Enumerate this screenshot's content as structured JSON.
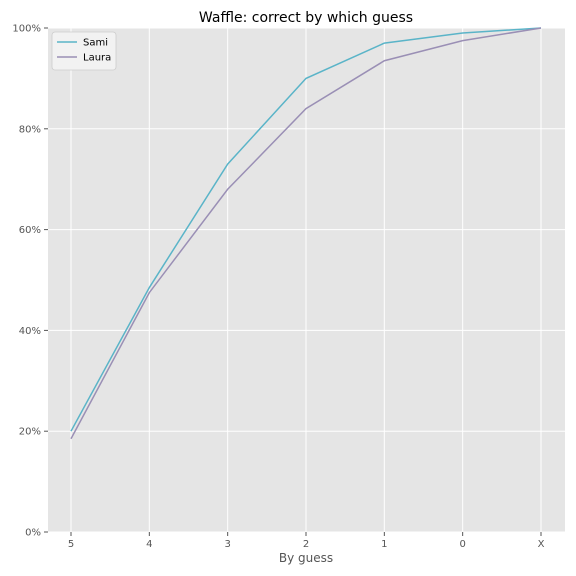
{
  "chart_data": {
    "type": "line",
    "title": "Waffle: correct by which guess",
    "xlabel": "By guess",
    "ylabel": "",
    "categories": [
      "5",
      "4",
      "3",
      "2",
      "1",
      "0",
      "X"
    ],
    "ylim": [
      0,
      100
    ],
    "yticks": [
      0,
      20,
      40,
      60,
      80,
      100
    ],
    "ytick_labels": [
      "0%",
      "20%",
      "40%",
      "60%",
      "80%",
      "100%"
    ],
    "grid": true,
    "legend_position": "top-left",
    "series": [
      {
        "name": "Sami",
        "color": "#5ab4c8",
        "values": [
          20,
          48.5,
          73,
          90,
          97,
          99,
          100
        ]
      },
      {
        "name": "Laura",
        "color": "#9a8fb5",
        "values": [
          18.5,
          47.5,
          68,
          84,
          93.5,
          97.5,
          100
        ]
      }
    ]
  },
  "colors": {
    "plot_background": "#e5e5e5",
    "grid": "#ffffff",
    "legend_background": "#f2f2f2",
    "legend_border": "#cccccc"
  }
}
